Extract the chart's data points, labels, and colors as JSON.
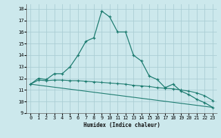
{
  "title": "",
  "xlabel": "Humidex (Indice chaleur)",
  "bg_color": "#cce8ec",
  "grid_color": "#aacdd4",
  "line_color": "#1a7a6e",
  "ylim": [
    9,
    18.4
  ],
  "xlim": [
    -0.5,
    23.5
  ],
  "yticks": [
    9,
    10,
    11,
    12,
    13,
    14,
    15,
    16,
    17,
    18
  ],
  "xticks": [
    0,
    1,
    2,
    3,
    4,
    5,
    6,
    7,
    8,
    9,
    10,
    11,
    12,
    13,
    14,
    15,
    16,
    17,
    18,
    19,
    20,
    21,
    22,
    23
  ],
  "series_main": {
    "x": [
      0,
      1,
      2,
      3,
      4,
      5,
      6,
      7,
      8,
      9,
      10,
      11,
      12,
      13,
      14,
      15,
      16,
      17,
      18,
      19,
      20,
      21,
      22,
      23
    ],
    "y": [
      11.5,
      12.0,
      11.9,
      12.4,
      12.4,
      13.0,
      14.0,
      15.2,
      15.5,
      17.8,
      17.3,
      16.0,
      16.0,
      14.0,
      13.5,
      12.2,
      11.9,
      11.2,
      11.5,
      10.9,
      10.6,
      10.2,
      9.9,
      9.5
    ]
  },
  "series_flat": {
    "x": [
      0,
      1,
      2,
      3,
      4,
      5,
      6,
      7,
      8,
      9,
      10,
      11,
      12,
      13,
      14,
      15,
      16,
      17,
      18,
      19,
      20,
      21,
      22,
      23
    ],
    "y": [
      11.5,
      11.85,
      11.8,
      11.85,
      11.85,
      11.8,
      11.8,
      11.75,
      11.7,
      11.65,
      11.6,
      11.55,
      11.5,
      11.4,
      11.35,
      11.3,
      11.2,
      11.15,
      11.1,
      11.0,
      10.9,
      10.75,
      10.5,
      10.1
    ]
  },
  "series_line": {
    "x": [
      0,
      23
    ],
    "y": [
      11.5,
      9.5
    ]
  }
}
